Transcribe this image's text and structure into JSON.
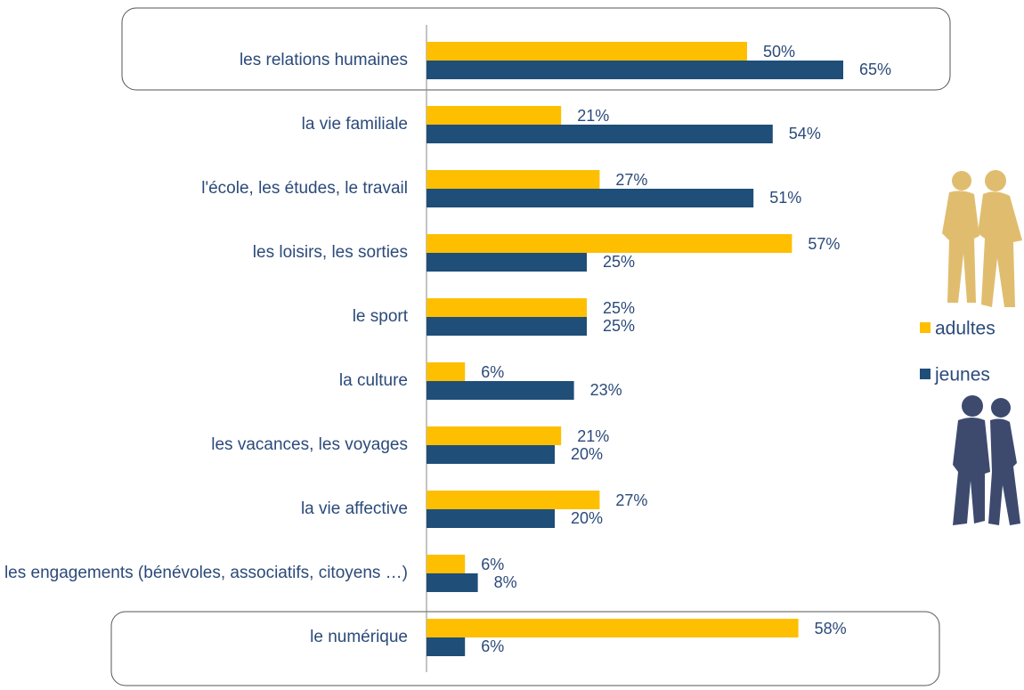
{
  "chart_data": {
    "type": "bar",
    "orientation": "horizontal",
    "categories": [
      "les relations humaines",
      "la vie familiale",
      "l'école, les études, le travail",
      "les loisirs, les sorties",
      "le sport",
      "la culture",
      "les vacances, les voyages",
      "la vie affective",
      "les engagements (bénévoles, associatifs, citoyens …)",
      "le numérique"
    ],
    "series": [
      {
        "name": "adultes",
        "color": "#fdbf00",
        "values": [
          50,
          21,
          27,
          57,
          25,
          6,
          21,
          27,
          6,
          58
        ],
        "value_labels": [
          "50%",
          "21%",
          "27%",
          "57%",
          "25%",
          "6%",
          "21%",
          "27%",
          "6%",
          "58%"
        ]
      },
      {
        "name": "jeunes",
        "color": "#1f4e79",
        "values": [
          65,
          54,
          51,
          25,
          25,
          23,
          20,
          20,
          8,
          6
        ],
        "value_labels": [
          "65%",
          "54%",
          "51%",
          "25%",
          "25%",
          "23%",
          "20%",
          "20%",
          "8%",
          "6%"
        ]
      }
    ]
  }
}
